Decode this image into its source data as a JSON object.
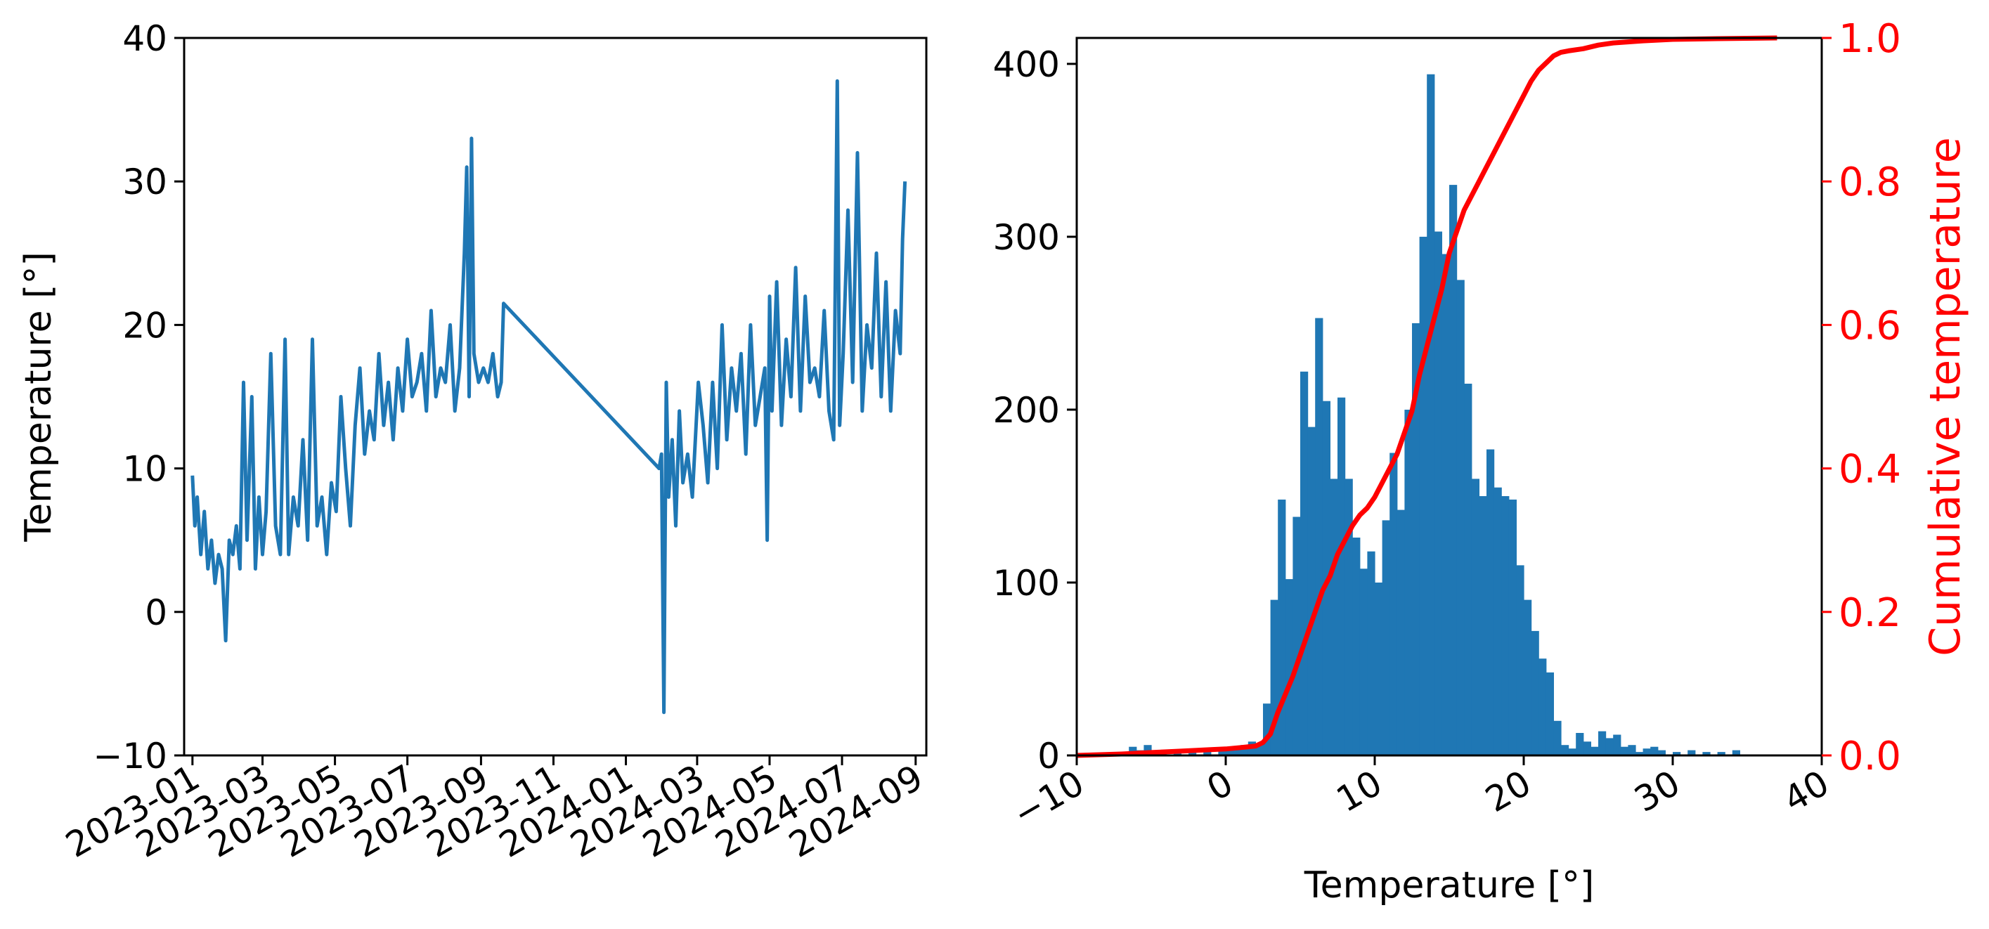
{
  "chart_data": [
    {
      "type": "line",
      "xlabel": "",
      "ylabel": "Temperature [°]",
      "ylim": [
        -10,
        40
      ],
      "yticks": [
        -10,
        0,
        10,
        20,
        30,
        40
      ],
      "xticks": [
        "2023-01",
        "2023-03",
        "2023-05",
        "2023-07",
        "2023-09",
        "2023-11",
        "2024-01",
        "2024-03",
        "2024-05",
        "2024-07",
        "2024-09"
      ],
      "xrange": [
        "2022-12-25",
        "2024-09-10"
      ],
      "grid": false,
      "series": [
        {
          "color": "#1f77b4",
          "x": [
            "2023-01-01",
            "2023-01-03",
            "2023-01-05",
            "2023-01-08",
            "2023-01-11",
            "2023-01-14",
            "2023-01-17",
            "2023-01-20",
            "2023-01-23",
            "2023-01-26",
            "2023-01-29",
            "2023-02-01",
            "2023-02-04",
            "2023-02-07",
            "2023-02-10",
            "2023-02-13",
            "2023-02-16",
            "2023-02-20",
            "2023-02-23",
            "2023-02-26",
            "2023-03-01",
            "2023-03-04",
            "2023-03-08",
            "2023-03-12",
            "2023-03-16",
            "2023-03-20",
            "2023-03-23",
            "2023-03-27",
            "2023-03-31",
            "2023-04-04",
            "2023-04-08",
            "2023-04-12",
            "2023-04-16",
            "2023-04-20",
            "2023-04-24",
            "2023-04-28",
            "2023-05-02",
            "2023-05-06",
            "2023-05-10",
            "2023-05-14",
            "2023-05-18",
            "2023-05-22",
            "2023-05-26",
            "2023-05-30",
            "2023-06-03",
            "2023-06-07",
            "2023-06-11",
            "2023-06-15",
            "2023-06-19",
            "2023-06-23",
            "2023-06-27",
            "2023-07-01",
            "2023-07-05",
            "2023-07-09",
            "2023-07-13",
            "2023-07-17",
            "2023-07-21",
            "2023-07-25",
            "2023-07-29",
            "2023-08-02",
            "2023-08-06",
            "2023-08-10",
            "2023-08-14",
            "2023-08-18",
            "2023-08-20",
            "2023-08-22",
            "2023-08-24",
            "2023-08-26",
            "2023-08-30",
            "2023-09-03",
            "2023-09-07",
            "2023-09-11",
            "2023-09-15",
            "2023-09-18",
            "2023-09-20",
            "2024-01-29",
            "2024-01-31",
            "2024-02-02",
            "2024-02-03",
            "2024-02-04",
            "2024-02-06",
            "2024-02-09",
            "2024-02-12",
            "2024-02-15",
            "2024-02-18",
            "2024-02-22",
            "2024-02-26",
            "2024-03-02",
            "2024-03-06",
            "2024-03-10",
            "2024-03-14",
            "2024-03-18",
            "2024-03-22",
            "2024-03-26",
            "2024-03-30",
            "2024-04-03",
            "2024-04-07",
            "2024-04-11",
            "2024-04-15",
            "2024-04-19",
            "2024-04-23",
            "2024-04-27",
            "2024-04-29",
            "2024-05-01",
            "2024-05-03",
            "2024-05-07",
            "2024-05-11",
            "2024-05-15",
            "2024-05-19",
            "2024-05-23",
            "2024-05-27",
            "2024-05-31",
            "2024-06-04",
            "2024-06-08",
            "2024-06-12",
            "2024-06-16",
            "2024-06-20",
            "2024-06-24",
            "2024-06-27",
            "2024-06-29",
            "2024-07-02",
            "2024-07-06",
            "2024-07-10",
            "2024-07-14",
            "2024-07-18",
            "2024-07-22",
            "2024-07-26",
            "2024-07-30",
            "2024-08-03",
            "2024-08-07",
            "2024-08-11",
            "2024-08-15",
            "2024-08-19",
            "2024-08-21",
            "2024-08-23"
          ],
          "y": [
            9.5,
            6,
            8,
            4,
            7,
            3,
            5,
            2,
            4,
            3,
            -2,
            5,
            4,
            6,
            3,
            16,
            5,
            15,
            3,
            8,
            4,
            7,
            18,
            6,
            4,
            19,
            4,
            8,
            6,
            12,
            5,
            19,
            6,
            8,
            4,
            9,
            7,
            15,
            10,
            6,
            13,
            17,
            11,
            14,
            12,
            18,
            13,
            16,
            12,
            17,
            14,
            19,
            15,
            16,
            18,
            14,
            21,
            15,
            17,
            16,
            20,
            14,
            17,
            25,
            31,
            15,
            33,
            18,
            16,
            17,
            16,
            18,
            15,
            16,
            21.5,
            10,
            11,
            -7,
            5,
            16,
            8,
            12,
            6,
            14,
            9,
            11,
            8,
            16,
            13,
            9,
            16,
            10,
            20,
            12,
            17,
            14,
            18,
            11,
            20,
            13,
            15,
            17,
            5,
            22,
            14,
            23,
            13,
            19,
            15,
            24,
            14,
            22,
            16,
            17,
            15,
            21,
            14,
            12,
            37,
            13,
            18,
            28,
            16,
            32,
            14,
            20,
            17,
            25,
            15,
            23,
            14,
            21,
            18,
            26,
            30
          ]
        }
      ]
    },
    {
      "type": "histogram",
      "xlabel": "Temperature [°]",
      "ylabel": "",
      "xlim": [
        -10,
        40
      ],
      "ylim": [
        0,
        415
      ],
      "xticks": [
        -10,
        0,
        10,
        20,
        30,
        40
      ],
      "yticks": [
        0,
        100,
        200,
        300,
        400
      ],
      "bin_width": 0.5,
      "bins": [
        [
          -7,
          2
        ],
        [
          -6.5,
          5
        ],
        [
          -6,
          3
        ],
        [
          -5.5,
          6
        ],
        [
          -4.5,
          2
        ],
        [
          -3.5,
          3
        ],
        [
          -2.5,
          2
        ],
        [
          -1.5,
          3
        ],
        [
          -0.5,
          4
        ],
        [
          0,
          3
        ],
        [
          0.5,
          4
        ],
        [
          1,
          6
        ],
        [
          1.5,
          8
        ],
        [
          2,
          7
        ],
        [
          2.5,
          30
        ],
        [
          3,
          90
        ],
        [
          3.5,
          148
        ],
        [
          4,
          102
        ],
        [
          4.5,
          138
        ],
        [
          5,
          222
        ],
        [
          5.5,
          190
        ],
        [
          6,
          253
        ],
        [
          6.5,
          205
        ],
        [
          7,
          160
        ],
        [
          7.5,
          207
        ],
        [
          8,
          160
        ],
        [
          8.5,
          126
        ],
        [
          9,
          108
        ],
        [
          9.5,
          118
        ],
        [
          10,
          100
        ],
        [
          10.5,
          136
        ],
        [
          11,
          175
        ],
        [
          11.5,
          142
        ],
        [
          12,
          200
        ],
        [
          12.5,
          250
        ],
        [
          13,
          300
        ],
        [
          13.5,
          394
        ],
        [
          14,
          303
        ],
        [
          14.5,
          290
        ],
        [
          15,
          330
        ],
        [
          15.5,
          275
        ],
        [
          16,
          215
        ],
        [
          16.5,
          160
        ],
        [
          17,
          150
        ],
        [
          17.5,
          177
        ],
        [
          18,
          155
        ],
        [
          18.5,
          150
        ],
        [
          19,
          148
        ],
        [
          19.5,
          110
        ],
        [
          20,
          90
        ],
        [
          20.5,
          72
        ],
        [
          21,
          56
        ],
        [
          21.5,
          48
        ],
        [
          22,
          20
        ],
        [
          22.5,
          6
        ],
        [
          23,
          4
        ],
        [
          23.5,
          13
        ],
        [
          24,
          8
        ],
        [
          24.5,
          5
        ],
        [
          25,
          14
        ],
        [
          25.5,
          10
        ],
        [
          26,
          12
        ],
        [
          26.5,
          5
        ],
        [
          27,
          6
        ],
        [
          27.5,
          2
        ],
        [
          28,
          4
        ],
        [
          28.5,
          5
        ],
        [
          29,
          3
        ],
        [
          30,
          2
        ],
        [
          31,
          3
        ],
        [
          32,
          2
        ],
        [
          33,
          2
        ],
        [
          34,
          3
        ]
      ],
      "color": "#1f77b4",
      "y2label": "Cumulative temperature",
      "y2lim": [
        0,
        1
      ],
      "y2ticks": [
        "0.0",
        "0.2",
        "0.4",
        "0.6",
        "0.8",
        "1.0"
      ],
      "cumulative": {
        "color": "#ff0000",
        "x": [
          -10,
          -7,
          -5,
          -3,
          -1,
          0,
          1,
          2,
          2.5,
          3,
          3.5,
          4,
          4.5,
          5,
          5.5,
          6,
          6.5,
          7,
          7.5,
          8,
          8.5,
          9,
          9.5,
          10,
          10.5,
          11,
          11.5,
          12,
          12.5,
          13,
          13.5,
          14,
          14.5,
          15,
          15.5,
          16,
          16.5,
          17,
          17.5,
          18,
          18.5,
          19,
          19.5,
          20,
          20.5,
          21,
          21.5,
          22,
          22.5,
          23,
          24,
          25,
          26,
          28,
          30,
          33,
          37
        ],
        "y": [
          0,
          0.002,
          0.004,
          0.006,
          0.008,
          0.009,
          0.011,
          0.013,
          0.018,
          0.03,
          0.06,
          0.085,
          0.11,
          0.14,
          0.17,
          0.2,
          0.23,
          0.25,
          0.28,
          0.3,
          0.32,
          0.335,
          0.345,
          0.36,
          0.38,
          0.4,
          0.42,
          0.45,
          0.48,
          0.53,
          0.57,
          0.61,
          0.65,
          0.7,
          0.73,
          0.76,
          0.78,
          0.8,
          0.82,
          0.84,
          0.86,
          0.88,
          0.9,
          0.92,
          0.94,
          0.955,
          0.965,
          0.975,
          0.98,
          0.982,
          0.985,
          0.99,
          0.993,
          0.996,
          0.998,
          0.999,
          1.0
        ]
      }
    }
  ]
}
